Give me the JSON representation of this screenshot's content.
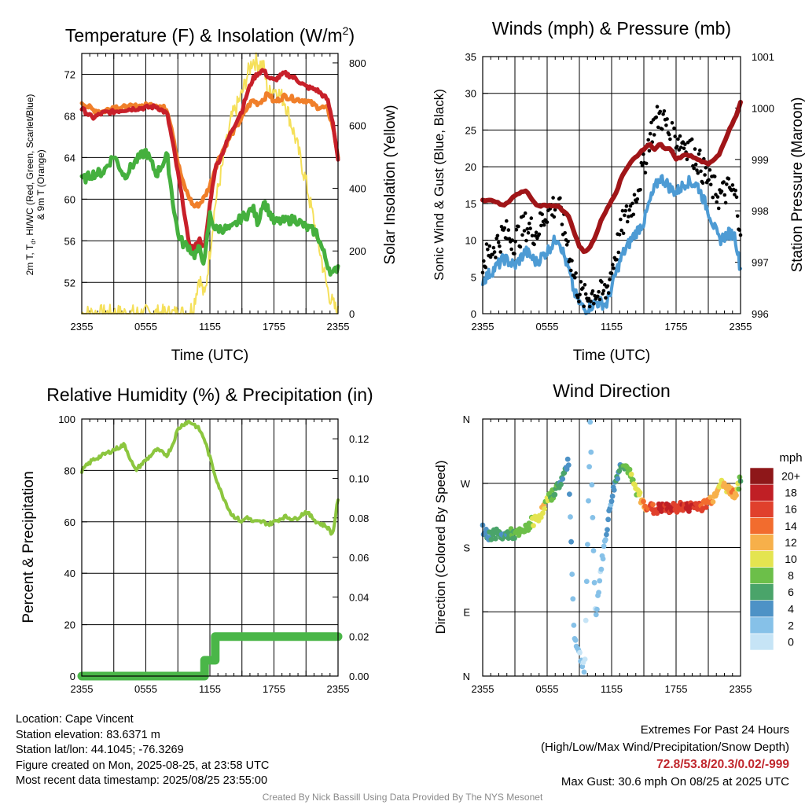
{
  "panels": {
    "temp": {
      "title": "Temperature (F) & Insolation (W/m",
      "title_sup": "2",
      "title_end": ")",
      "ylabel_left": "2m T, Tₙ, HI/WC (Red, Green, Scarlet/Blue) & 9m T (Orange)",
      "ylabel_left_line1": "2m T, T",
      "ylabel_left_sub": "d",
      "ylabel_left_line1_end": ", HI/WC (Red, Green, Scarlet/Blue)",
      "ylabel_left_line2": "& 9m T (Orange)",
      "ylabel_right": "Solar Insolation (Yellow)",
      "xlabel": "Time (UTC)"
    },
    "wind": {
      "title": "Winds (mph) & Pressure (mb)",
      "ylabel_left": "Sonic Wind & Gust (Blue, Black)",
      "ylabel_right": "Station Pressure (Maroon)",
      "xlabel": "Time (UTC)"
    },
    "rh": {
      "title": "Relative Humidity (%) & Precipitation (in)",
      "ylabel_left": "Percent & Precipitation"
    },
    "dir": {
      "title": "Wind Direction",
      "ylabel_left": "Direction (Colored By Speed)",
      "colorbar_title": "mph"
    }
  },
  "info": {
    "location": "Location: Cape Vincent",
    "elevation": "Station elevation: 83.6371 m",
    "latlon": "Station lat/lon: 44.1045; -76.3269",
    "created": "Figure created on Mon, 2025-08-25, at 23:58 UTC",
    "recent": "Most recent data timestamp: 2025/08/25 23:55:00",
    "extremes_title": "Extremes For Past 24 Hours",
    "extremes_desc": "(High/Low/Max Wind/Precipitation/Snow Depth)",
    "extremes_values": "72.8/53.8/20.3/0.02/-999",
    "max_gust": "Max Gust: 30.6 mph On 08/25 at 2025 UTC",
    "credit": "Created By Nick Bassill Using Data Provided By The NYS Mesonet"
  },
  "colors": {
    "temp": "#c8202a",
    "temp9m": "#f07f2a",
    "dewpoint": "#45b03e",
    "insolation": "#f5e05a",
    "wind": "#4d9bd4",
    "gust": "#000000",
    "pressure": "#a01518",
    "rh": "#8cc63f",
    "precip": "#4ab648"
  },
  "chart_data": [
    {
      "type": "line",
      "name": "temperature",
      "x_ticks": [
        "2355",
        "0555",
        "1155",
        "1755",
        "2355"
      ],
      "y_left_ticks": [
        52,
        56,
        60,
        64,
        68,
        72
      ],
      "y_left_lim": [
        49,
        74
      ],
      "y_right_ticks": [
        0,
        200,
        400,
        600,
        800
      ],
      "y_right_lim": [
        0,
        830
      ],
      "x_hours": [
        0,
        1,
        2,
        3,
        4,
        5,
        6,
        7,
        8,
        8.5,
        9,
        9.5,
        10,
        10.5,
        11,
        11.5,
        12,
        12.5,
        13,
        14,
        15,
        15.5,
        16,
        16.5,
        17,
        17.5,
        18,
        19,
        20,
        21,
        22,
        23,
        23.5,
        24
      ],
      "series": [
        {
          "label": "2m T",
          "color": "#c8202a",
          "values": [
            68.7,
            67.8,
            68.3,
            68.4,
            68.6,
            68.7,
            68.8,
            68.9,
            68.2,
            65.5,
            62.5,
            59.5,
            55.8,
            55.2,
            56.2,
            55.2,
            59.5,
            63.0,
            64.0,
            66.5,
            68.5,
            70.2,
            71.5,
            72.1,
            72.4,
            71.7,
            71.4,
            72.1,
            71.6,
            70.8,
            70.5,
            69.6,
            67.5,
            63.8
          ]
        },
        {
          "label": "9m T",
          "color": "#f07f2a",
          "values": [
            69.3,
            68.6,
            68.4,
            68.9,
            68.8,
            68.9,
            69.0,
            69.1,
            68.6,
            66.5,
            63.5,
            61.5,
            60.3,
            59.3,
            59.5,
            60.2,
            61.3,
            63.0,
            64.3,
            66.2,
            67.8,
            68.8,
            69.5,
            69.2,
            69.6,
            70.2,
            69.3,
            69.9,
            69.6,
            69.5,
            68.9,
            68.7,
            67.1,
            64.1
          ]
        },
        {
          "label": "Dew point",
          "color": "#45b03e",
          "values": [
            61.8,
            62.4,
            62.6,
            64.2,
            62.2,
            63.6,
            64.6,
            62.4,
            64.2,
            60.0,
            56.7,
            55.7,
            55.5,
            54.6,
            55.2,
            53.9,
            58.5,
            57.1,
            57.2,
            57.1,
            58.3,
            58.5,
            59.2,
            57.7,
            59.9,
            58.9,
            57.8,
            57.9,
            58.1,
            57.3,
            56.8,
            53.8,
            52.7,
            53.6
          ]
        },
        {
          "label": "Solar Insolation",
          "axis": "right",
          "color": "#f5e05a",
          "values": [
            0,
            0,
            0,
            0,
            0,
            0,
            0,
            0,
            0,
            0,
            0,
            0,
            0,
            30,
            120,
            50,
            200,
            350,
            440,
            620,
            700,
            760,
            810,
            800,
            790,
            700,
            720,
            680,
            560,
            420,
            250,
            80,
            30,
            0
          ]
        }
      ]
    },
    {
      "type": "line",
      "name": "winds",
      "x_ticks": [
        "2355",
        "0555",
        "1155",
        "1755",
        "2355"
      ],
      "y_left_ticks": [
        0,
        5,
        10,
        15,
        20,
        25,
        30,
        35
      ],
      "y_left_lim": [
        0,
        35
      ],
      "y_right_ticks": [
        996,
        997,
        998,
        999,
        1000,
        1001
      ],
      "y_right_lim": [
        996,
        1001
      ],
      "x_hours": [
        0,
        1,
        2,
        3,
        4,
        5,
        6,
        7,
        8,
        8.5,
        9,
        9.5,
        10,
        10.5,
        11,
        11.5,
        12,
        12.5,
        13,
        14,
        15,
        15.5,
        16,
        16.5,
        17,
        17.5,
        18,
        19,
        20,
        21,
        22,
        23,
        23.5,
        24
      ],
      "series": [
        {
          "label": "Sonic Wind",
          "color": "#4d9bd4",
          "values": [
            4.5,
            6.0,
            7.5,
            6.5,
            8.5,
            7.0,
            8.5,
            10.5,
            6.0,
            3.0,
            1.5,
            0.5,
            1.0,
            1.5,
            1.5,
            1.2,
            3.5,
            6.0,
            8.0,
            10.5,
            12.5,
            15.0,
            17.0,
            18.5,
            18.0,
            17.0,
            16.5,
            18.0,
            17.5,
            14.0,
            10.0,
            11.0,
            10.5,
            6.0
          ]
        },
        {
          "label": "Gust",
          "color": "#000000",
          "style": "dots",
          "values": [
            7,
            9,
            11,
            10,
            12,
            11,
            14,
            15,
            9,
            5,
            3,
            2,
            2.5,
            3,
            2.5,
            3,
            6,
            9,
            12,
            15,
            20,
            24,
            26,
            27,
            26,
            24,
            24,
            23,
            21,
            18,
            16,
            17,
            16,
            12
          ]
        },
        {
          "label": "Station Pressure",
          "axis": "right",
          "color": "#a01518",
          "values": [
            998.2,
            998.2,
            998.1,
            998.3,
            998.4,
            998.1,
            998.1,
            998.1,
            997.9,
            997.6,
            997.3,
            997.2,
            997.3,
            997.5,
            997.8,
            998.0,
            998.2,
            998.4,
            998.7,
            999.0,
            999.2,
            999.3,
            999.2,
            999.3,
            999.2,
            999.2,
            999.0,
            999.1,
            999.0,
            998.9,
            999.1,
            999.6,
            999.8,
            1000.1
          ]
        }
      ]
    },
    {
      "type": "line",
      "name": "humidity_precip",
      "x_ticks": [
        "2355",
        "0555",
        "1155",
        "1755",
        "2355"
      ],
      "y_left_ticks": [
        0,
        20,
        40,
        60,
        80,
        100
      ],
      "y_left_lim": [
        0,
        100
      ],
      "y_right_ticks": [
        "0.00",
        "0.02",
        "0.04",
        "0.06",
        "0.08",
        "0.10",
        "0.12"
      ],
      "y_right_lim": [
        0,
        0.13
      ],
      "x_hours": [
        0,
        1,
        2,
        3,
        4,
        5,
        6,
        7,
        8,
        8.5,
        9,
        9.5,
        10,
        10.5,
        11,
        11.5,
        12,
        12.5,
        13,
        14,
        15,
        15.5,
        16,
        16.5,
        17,
        17.5,
        18,
        19,
        20,
        21,
        22,
        23,
        23.5,
        24
      ],
      "series": [
        {
          "label": "Relative Humidity",
          "color": "#8cc63f",
          "values": [
            80,
            84,
            86,
            88,
            90,
            80,
            84,
            88,
            86,
            90,
            96,
            98,
            99,
            98,
            96,
            92,
            85,
            78,
            72,
            63,
            60,
            62,
            60,
            60,
            60,
            59,
            60,
            62,
            61,
            64,
            60,
            58,
            55,
            69
          ]
        },
        {
          "label": "Precipitation",
          "axis": "right",
          "color": "#4ab648",
          "values": [
            0,
            0,
            0,
            0,
            0,
            0,
            0,
            0,
            0,
            0,
            0,
            0,
            0,
            0,
            0,
            0.008,
            0.008,
            0.02,
            0.02,
            0.02,
            0.02,
            0.02,
            0.02,
            0.02,
            0.02,
            0.02,
            0.02,
            0.02,
            0.02,
            0.02,
            0.02,
            0.02,
            0.02,
            0.02
          ]
        }
      ]
    },
    {
      "type": "scatter",
      "name": "wind_direction",
      "x_ticks": [
        "2355",
        "0555",
        "1155",
        "1755",
        "2355"
      ],
      "y_ticks": [
        "N",
        "E",
        "S",
        "W",
        "N"
      ],
      "y_lim_degrees": [
        0,
        360
      ],
      "colorbar_ticks": [
        "0",
        "2",
        "4",
        "6",
        "8",
        "10",
        "12",
        "14",
        "16",
        "18",
        "20+"
      ],
      "colorbar_colors": [
        "#c6e4f6",
        "#86c1e8",
        "#4d92c6",
        "#4aa46a",
        "#6cbf49",
        "#e4e450",
        "#f7b04a",
        "#f26c2e",
        "#e0402c",
        "#c01f25",
        "#8e1719"
      ],
      "x_hours": [
        0,
        0.5,
        1,
        1.5,
        2,
        2.5,
        3,
        3.5,
        4,
        4.5,
        5,
        5.5,
        6,
        6.5,
        7,
        7.5,
        8,
        8.5,
        9,
        9.5,
        10,
        10.5,
        11,
        11.5,
        12,
        12.5,
        13,
        13.5,
        14,
        14.5,
        15,
        15.5,
        16,
        16.5,
        17,
        17.5,
        18,
        18.5,
        19,
        19.5,
        20,
        20.5,
        21,
        21.5,
        22,
        22.5,
        23,
        23.5,
        24
      ],
      "direction_deg": [
        205,
        195,
        200,
        198,
        196,
        200,
        198,
        200,
        205,
        215,
        220,
        230,
        245,
        255,
        265,
        280,
        300,
        60,
        30,
        10,
        350,
        80,
        150,
        200,
        250,
        280,
        300,
        290,
        270,
        255,
        240,
        238,
        232,
        235,
        235,
        234,
        236,
        238,
        235,
        238,
        240,
        238,
        245,
        250,
        270,
        265,
        260,
        255,
        275
      ],
      "speed_mph": [
        4,
        5,
        6,
        6,
        5,
        6,
        7,
        8,
        8,
        9,
        10,
        11,
        9,
        7,
        6,
        5,
        4,
        2,
        1,
        1,
        2,
        1,
        2,
        3,
        4,
        5,
        6,
        8,
        9,
        10,
        13,
        15,
        16,
        18,
        17,
        17,
        16,
        16,
        17,
        17,
        16,
        15,
        14,
        12,
        10,
        11,
        12,
        13,
        6
      ]
    }
  ]
}
